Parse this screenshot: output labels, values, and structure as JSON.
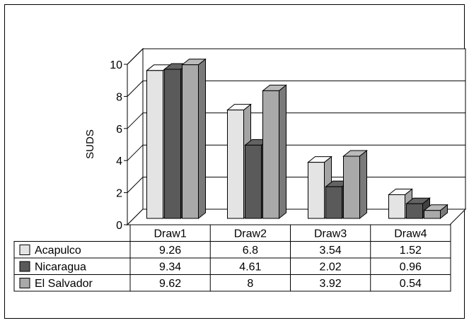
{
  "chart_data": {
    "type": "bar",
    "title": "",
    "xlabel": "",
    "ylabel": "SUDS",
    "ylim": [
      0,
      10
    ],
    "yticks": [
      0,
      2,
      4,
      6,
      8,
      10
    ],
    "grid": true,
    "legend_placement": "data-table",
    "categories": [
      "Draw1",
      "Draw2",
      "Draw3",
      "Draw4"
    ],
    "series": [
      {
        "name": "Acapulco",
        "values": [
          9.26,
          6.8,
          3.54,
          1.52
        ],
        "color": "#e4e4e4",
        "value_labels": [
          "9.26",
          "6.8",
          "3.54",
          "1.52"
        ]
      },
      {
        "name": "Nicaragua",
        "values": [
          9.34,
          4.61,
          2.02,
          0.96
        ],
        "color": "#5a5a5a",
        "value_labels": [
          "9.34",
          "4.61",
          "2.02",
          "0.96"
        ]
      },
      {
        "name": "El Salvador",
        "values": [
          9.62,
          8,
          3.92,
          0.54
        ],
        "color": "#a9a9a9",
        "value_labels": [
          "9.62",
          "8",
          "3.92",
          "0.54"
        ]
      }
    ]
  }
}
